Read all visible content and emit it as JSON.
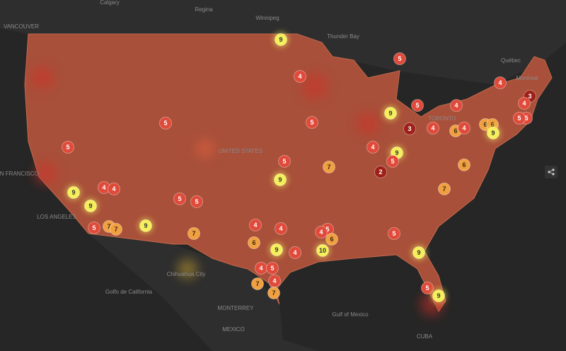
{
  "places": [
    {
      "label": "Calgary"
    },
    {
      "label": "Regina"
    },
    {
      "label": "Winnipeg"
    },
    {
      "label": "VANCOUVER"
    },
    {
      "label": "Thunder Bay"
    },
    {
      "label": "Québec"
    },
    {
      "label": "Montreal"
    },
    {
      "label": "TORONTO"
    },
    {
      "label": "SAN FRANCISCO"
    },
    {
      "label": "LOS ANGELES"
    },
    {
      "label": "UNITED STATES"
    },
    {
      "label": "Chihuahua City"
    },
    {
      "label": "MONTERREY"
    },
    {
      "label": "MEXICO"
    },
    {
      "label": "Golfo de California"
    },
    {
      "label": "Gulf of Mexico"
    },
    {
      "label": "CUBA"
    }
  ],
  "clusters": [
    {
      "count": 9
    },
    {
      "count": 5
    },
    {
      "count": 4
    },
    {
      "count": 4
    },
    {
      "count": 3
    },
    {
      "count": 4
    },
    {
      "count": 5
    },
    {
      "count": 4
    },
    {
      "count": 9
    },
    {
      "count": 5
    },
    {
      "count": 5
    },
    {
      "count": 3
    },
    {
      "count": 4
    },
    {
      "count": 6
    },
    {
      "count": 4
    },
    {
      "count": 6
    },
    {
      "count": 6
    },
    {
      "count": 5
    },
    {
      "count": 5
    },
    {
      "count": 9
    },
    {
      "count": 5
    },
    {
      "count": 4
    },
    {
      "count": 9
    },
    {
      "count": 5
    },
    {
      "count": 5
    },
    {
      "count": 7
    },
    {
      "count": 2
    },
    {
      "count": 6
    },
    {
      "count": 9
    },
    {
      "count": 4
    },
    {
      "count": 4
    },
    {
      "count": 9
    },
    {
      "count": 7
    },
    {
      "count": 5
    },
    {
      "count": 5
    },
    {
      "count": 9
    },
    {
      "count": 4
    },
    {
      "count": 5
    },
    {
      "count": 7
    },
    {
      "count": 7
    },
    {
      "count": 9
    },
    {
      "count": 4
    },
    {
      "count": 5
    },
    {
      "count": 4
    },
    {
      "count": 6
    },
    {
      "count": 7
    },
    {
      "count": 5
    },
    {
      "count": 6
    },
    {
      "count": 9
    },
    {
      "count": 4
    },
    {
      "count": 10
    },
    {
      "count": 9
    },
    {
      "count": 4
    },
    {
      "count": 5
    },
    {
      "count": 4
    },
    {
      "count": 7
    },
    {
      "count": 7
    },
    {
      "count": 5
    },
    {
      "count": 9
    }
  ]
}
